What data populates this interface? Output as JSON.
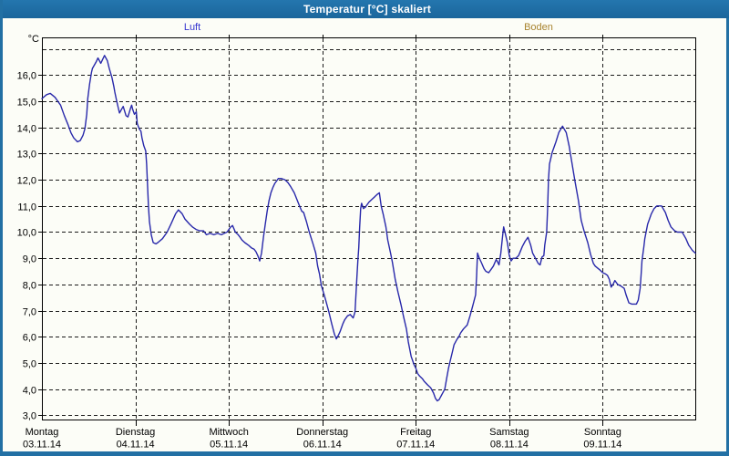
{
  "window": {
    "title": "Temperatur [°C] skaliert",
    "titlebar_color": "#1f6ea6",
    "frame_color": "#2270a4"
  },
  "legend": [
    {
      "label": "Luft",
      "color": "#3434cf"
    },
    {
      "label": "Boden",
      "color": "#a8832e"
    }
  ],
  "chart_data": {
    "type": "line",
    "title": "Temperatur [°C] skaliert",
    "unit_label": "°C",
    "grid": "dashed",
    "x_range_days": [
      0,
      7
    ],
    "y_range": [
      2.8,
      17.45
    ],
    "y_ticks": [
      {
        "value": 3,
        "label": "3,0"
      },
      {
        "value": 4,
        "label": "4,0"
      },
      {
        "value": 5,
        "label": "5,0"
      },
      {
        "value": 6,
        "label": "6,0"
      },
      {
        "value": 7,
        "label": "7,0"
      },
      {
        "value": 8,
        "label": "8,0"
      },
      {
        "value": 9,
        "label": "9,0"
      },
      {
        "value": 10,
        "label": "10,0"
      },
      {
        "value": 11,
        "label": "11,0"
      },
      {
        "value": 12,
        "label": "12,0"
      },
      {
        "value": 13,
        "label": "13,0"
      },
      {
        "value": 14,
        "label": "14,0"
      },
      {
        "value": 15,
        "label": "15,0"
      },
      {
        "value": 16,
        "label": "16,0"
      },
      {
        "value": 17,
        "label": ""
      }
    ],
    "days": [
      {
        "name": "Montag",
        "date": "03.11.14"
      },
      {
        "name": "Dienstag",
        "date": "04.11.14"
      },
      {
        "name": "Mittwoch",
        "date": "05.11.14"
      },
      {
        "name": "Donnerstag",
        "date": "06.11.14"
      },
      {
        "name": "Freitag",
        "date": "07.11.14"
      },
      {
        "name": "Samstag",
        "date": "08.11.14"
      },
      {
        "name": "Sonntag",
        "date": "09.11.14"
      }
    ],
    "series": [
      {
        "name": "Luft",
        "color": "#2828aa",
        "points": [
          [
            0.0,
            15.1
          ],
          [
            0.05,
            15.25
          ],
          [
            0.09,
            15.3
          ],
          [
            0.14,
            15.15
          ],
          [
            0.17,
            15.0
          ],
          [
            0.2,
            14.85
          ],
          [
            0.21,
            14.75
          ],
          [
            0.24,
            14.45
          ],
          [
            0.28,
            14.1
          ],
          [
            0.31,
            13.8
          ],
          [
            0.34,
            13.6
          ],
          [
            0.38,
            13.45
          ],
          [
            0.41,
            13.5
          ],
          [
            0.44,
            13.7
          ],
          [
            0.46,
            13.95
          ],
          [
            0.48,
            14.5
          ],
          [
            0.49,
            15.1
          ],
          [
            0.51,
            15.65
          ],
          [
            0.53,
            16.1
          ],
          [
            0.54,
            16.25
          ],
          [
            0.58,
            16.5
          ],
          [
            0.6,
            16.65
          ],
          [
            0.63,
            16.45
          ],
          [
            0.67,
            16.75
          ],
          [
            0.7,
            16.55
          ],
          [
            0.72,
            16.25
          ],
          [
            0.75,
            15.9
          ],
          [
            0.77,
            15.55
          ],
          [
            0.78,
            15.35
          ],
          [
            0.8,
            15.0
          ],
          [
            0.82,
            14.7
          ],
          [
            0.83,
            14.55
          ],
          [
            0.87,
            14.8
          ],
          [
            0.9,
            14.45
          ],
          [
            0.92,
            14.4
          ],
          [
            0.95,
            14.75
          ],
          [
            0.96,
            14.85
          ],
          [
            0.97,
            14.7
          ],
          [
            0.99,
            14.5
          ],
          [
            1.01,
            14.6
          ],
          [
            1.02,
            14.15
          ],
          [
            1.04,
            13.95
          ],
          [
            1.06,
            13.85
          ],
          [
            1.07,
            13.6
          ],
          [
            1.09,
            13.3
          ],
          [
            1.11,
            13.1
          ],
          [
            1.12,
            12.6
          ],
          [
            1.13,
            11.8
          ],
          [
            1.14,
            11.0
          ],
          [
            1.15,
            10.4
          ],
          [
            1.17,
            9.9
          ],
          [
            1.19,
            9.6
          ],
          [
            1.22,
            9.55
          ],
          [
            1.24,
            9.6
          ],
          [
            1.29,
            9.75
          ],
          [
            1.34,
            10.0
          ],
          [
            1.38,
            10.3
          ],
          [
            1.43,
            10.7
          ],
          [
            1.46,
            10.85
          ],
          [
            1.5,
            10.7
          ],
          [
            1.53,
            10.5
          ],
          [
            1.58,
            10.3
          ],
          [
            1.61,
            10.2
          ],
          [
            1.65,
            10.1
          ],
          [
            1.69,
            10.05
          ],
          [
            1.73,
            10.05
          ],
          [
            1.76,
            9.9
          ],
          [
            1.8,
            9.95
          ],
          [
            1.84,
            9.9
          ],
          [
            1.88,
            9.95
          ],
          [
            1.92,
            9.9
          ],
          [
            1.95,
            9.95
          ],
          [
            1.98,
            10.0
          ],
          [
            2.02,
            10.2
          ],
          [
            2.04,
            10.25
          ],
          [
            2.07,
            10.0
          ],
          [
            2.1,
            9.9
          ],
          [
            2.12,
            9.8
          ],
          [
            2.14,
            9.7
          ],
          [
            2.17,
            9.6
          ],
          [
            2.21,
            9.5
          ],
          [
            2.24,
            9.4
          ],
          [
            2.27,
            9.35
          ],
          [
            2.29,
            9.25
          ],
          [
            2.31,
            9.1
          ],
          [
            2.32,
            9.0
          ],
          [
            2.33,
            8.9
          ],
          [
            2.35,
            9.2
          ],
          [
            2.37,
            9.8
          ],
          [
            2.39,
            10.3
          ],
          [
            2.41,
            10.8
          ],
          [
            2.43,
            11.2
          ],
          [
            2.45,
            11.5
          ],
          [
            2.47,
            11.7
          ],
          [
            2.49,
            11.85
          ],
          [
            2.51,
            11.95
          ],
          [
            2.53,
            12.05
          ],
          [
            2.56,
            12.05
          ],
          [
            2.6,
            12.0
          ],
          [
            2.63,
            11.9
          ],
          [
            2.66,
            11.75
          ],
          [
            2.7,
            11.5
          ],
          [
            2.75,
            11.05
          ],
          [
            2.78,
            10.8
          ],
          [
            2.8,
            10.75
          ],
          [
            2.83,
            10.4
          ],
          [
            2.86,
            10.0
          ],
          [
            2.9,
            9.55
          ],
          [
            2.93,
            9.2
          ],
          [
            2.95,
            8.7
          ],
          [
            2.97,
            8.4
          ],
          [
            2.99,
            7.95
          ],
          [
            3.02,
            7.6
          ],
          [
            3.04,
            7.35
          ],
          [
            3.07,
            6.95
          ],
          [
            3.1,
            6.5
          ],
          [
            3.13,
            6.1
          ],
          [
            3.15,
            5.92
          ],
          [
            3.17,
            6.05
          ],
          [
            3.19,
            6.2
          ],
          [
            3.22,
            6.5
          ],
          [
            3.24,
            6.65
          ],
          [
            3.27,
            6.8
          ],
          [
            3.3,
            6.85
          ],
          [
            3.31,
            6.8
          ],
          [
            3.33,
            6.72
          ],
          [
            3.35,
            6.95
          ],
          [
            3.36,
            7.6
          ],
          [
            3.37,
            8.3
          ],
          [
            3.38,
            8.9
          ],
          [
            3.39,
            9.4
          ],
          [
            3.4,
            10.2
          ],
          [
            3.41,
            10.9
          ],
          [
            3.42,
            11.1
          ],
          [
            3.44,
            10.9
          ],
          [
            3.46,
            10.95
          ],
          [
            3.48,
            11.05
          ],
          [
            3.5,
            11.15
          ],
          [
            3.53,
            11.25
          ],
          [
            3.56,
            11.35
          ],
          [
            3.59,
            11.45
          ],
          [
            3.61,
            11.5
          ],
          [
            3.63,
            11.0
          ],
          [
            3.65,
            10.7
          ],
          [
            3.68,
            10.2
          ],
          [
            3.7,
            9.7
          ],
          [
            3.73,
            9.2
          ],
          [
            3.75,
            8.85
          ],
          [
            3.78,
            8.2
          ],
          [
            3.81,
            7.7
          ],
          [
            3.84,
            7.25
          ],
          [
            3.87,
            6.75
          ],
          [
            3.9,
            6.3
          ],
          [
            3.92,
            5.8
          ],
          [
            3.95,
            5.25
          ],
          [
            3.98,
            4.95
          ],
          [
            4.0,
            4.8
          ],
          [
            4.02,
            4.6
          ],
          [
            4.04,
            4.5
          ],
          [
            4.07,
            4.4
          ],
          [
            4.09,
            4.3
          ],
          [
            4.13,
            4.15
          ],
          [
            4.16,
            4.05
          ],
          [
            4.19,
            3.85
          ],
          [
            4.21,
            3.65
          ],
          [
            4.23,
            3.55
          ],
          [
            4.25,
            3.6
          ],
          [
            4.28,
            3.8
          ],
          [
            4.31,
            4.0
          ],
          [
            4.33,
            4.4
          ],
          [
            4.35,
            4.8
          ],
          [
            4.37,
            5.1
          ],
          [
            4.39,
            5.4
          ],
          [
            4.41,
            5.7
          ],
          [
            4.44,
            5.9
          ],
          [
            4.46,
            6.0
          ],
          [
            4.48,
            6.15
          ],
          [
            4.51,
            6.3
          ],
          [
            4.55,
            6.45
          ],
          [
            4.58,
            6.8
          ],
          [
            4.61,
            7.2
          ],
          [
            4.64,
            7.6
          ],
          [
            4.65,
            8.3
          ],
          [
            4.66,
            9.2
          ],
          [
            4.68,
            9.0
          ],
          [
            4.7,
            8.85
          ],
          [
            4.73,
            8.6
          ],
          [
            4.75,
            8.5
          ],
          [
            4.78,
            8.45
          ],
          [
            4.81,
            8.6
          ],
          [
            4.83,
            8.7
          ],
          [
            4.86,
            8.95
          ],
          [
            4.87,
            8.9
          ],
          [
            4.89,
            8.75
          ],
          [
            4.91,
            9.2
          ],
          [
            4.93,
            9.9
          ],
          [
            4.94,
            10.2
          ],
          [
            4.96,
            9.9
          ],
          [
            4.98,
            9.6
          ],
          [
            5.0,
            9.1
          ],
          [
            5.02,
            8.9
          ],
          [
            5.04,
            9.0
          ],
          [
            5.07,
            9.0
          ],
          [
            5.1,
            9.1
          ],
          [
            5.14,
            9.45
          ],
          [
            5.17,
            9.65
          ],
          [
            5.2,
            9.8
          ],
          [
            5.23,
            9.5
          ],
          [
            5.25,
            9.2
          ],
          [
            5.28,
            9.0
          ],
          [
            5.31,
            8.8
          ],
          [
            5.33,
            8.75
          ],
          [
            5.35,
            9.05
          ],
          [
            5.37,
            9.1
          ],
          [
            5.38,
            9.5
          ],
          [
            5.4,
            10.0
          ],
          [
            5.41,
            10.85
          ],
          [
            5.42,
            12.0
          ],
          [
            5.43,
            12.6
          ],
          [
            5.45,
            12.9
          ],
          [
            5.46,
            13.05
          ],
          [
            5.5,
            13.45
          ],
          [
            5.53,
            13.8
          ],
          [
            5.57,
            14.05
          ],
          [
            5.61,
            13.8
          ],
          [
            5.64,
            13.3
          ],
          [
            5.67,
            12.65
          ],
          [
            5.7,
            12.0
          ],
          [
            5.74,
            11.2
          ],
          [
            5.77,
            10.45
          ],
          [
            5.8,
            10.05
          ],
          [
            5.84,
            9.6
          ],
          [
            5.87,
            9.15
          ],
          [
            5.9,
            8.8
          ],
          [
            5.92,
            8.7
          ],
          [
            5.97,
            8.55
          ],
          [
            6.0,
            8.45
          ],
          [
            6.03,
            8.4
          ],
          [
            6.05,
            8.35
          ],
          [
            6.07,
            8.2
          ],
          [
            6.09,
            7.9
          ],
          [
            6.11,
            8.0
          ],
          [
            6.13,
            8.15
          ],
          [
            6.16,
            8.0
          ],
          [
            6.19,
            7.95
          ],
          [
            6.23,
            7.85
          ],
          [
            6.25,
            7.6
          ],
          [
            6.28,
            7.3
          ],
          [
            6.31,
            7.25
          ],
          [
            6.36,
            7.25
          ],
          [
            6.38,
            7.4
          ],
          [
            6.4,
            7.85
          ],
          [
            6.41,
            8.35
          ],
          [
            6.42,
            8.9
          ],
          [
            6.44,
            9.45
          ],
          [
            6.45,
            9.75
          ],
          [
            6.48,
            10.3
          ],
          [
            6.52,
            10.7
          ],
          [
            6.55,
            10.9
          ],
          [
            6.58,
            11.0
          ],
          [
            6.63,
            11.0
          ],
          [
            6.67,
            10.75
          ],
          [
            6.7,
            10.45
          ],
          [
            6.73,
            10.2
          ],
          [
            6.77,
            10.05
          ],
          [
            6.8,
            10.0
          ],
          [
            6.85,
            10.0
          ],
          [
            6.89,
            9.75
          ],
          [
            6.92,
            9.5
          ],
          [
            6.96,
            9.3
          ],
          [
            6.99,
            9.2
          ]
        ]
      }
    ]
  }
}
